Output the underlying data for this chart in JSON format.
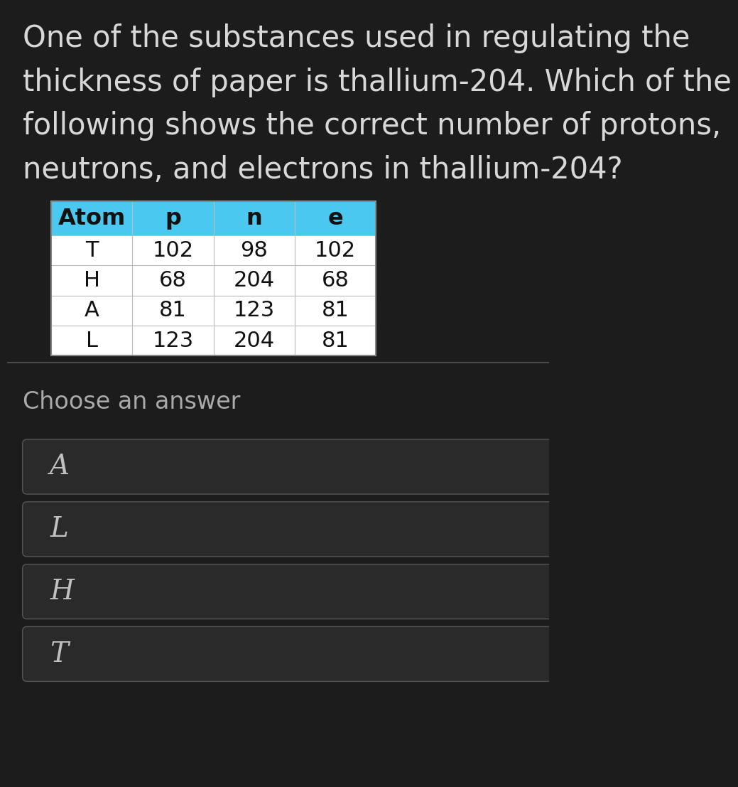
{
  "bg_color": "#1c1c1c",
  "question_text": "One of the substances used in regulating the\nthickness of paper is thallium-204. Which of the\nfollowing shows the correct number of protons,\nneutrons, and electrons in thallium-204?",
  "question_color": "#d8d8d8",
  "question_fontsize": 30,
  "table_header": [
    "Atom",
    "p",
    "n",
    "e"
  ],
  "table_rows": [
    [
      "T",
      "102",
      "98",
      "102"
    ],
    [
      "H",
      "68",
      "204",
      "68"
    ],
    [
      "A",
      "81",
      "123",
      "81"
    ],
    [
      "L",
      "123",
      "204",
      "81"
    ]
  ],
  "header_bg": "#4ac8f0",
  "header_text_color": "#111111",
  "table_bg": "#ffffff",
  "table_text_color": "#111111",
  "table_border_color": "#bbbbbb",
  "table_outer_border": "#888888",
  "divider_color": "#555555",
  "choose_label": "Choose an answer",
  "choose_color": "#aaaaaa",
  "choose_fontsize": 24,
  "answer_options": [
    "A",
    "L",
    "H",
    "T"
  ],
  "answer_bg": "#2a2a2a",
  "answer_border": "#555555",
  "answer_text_color": "#c0c0c0",
  "answer_fontsize": 28
}
